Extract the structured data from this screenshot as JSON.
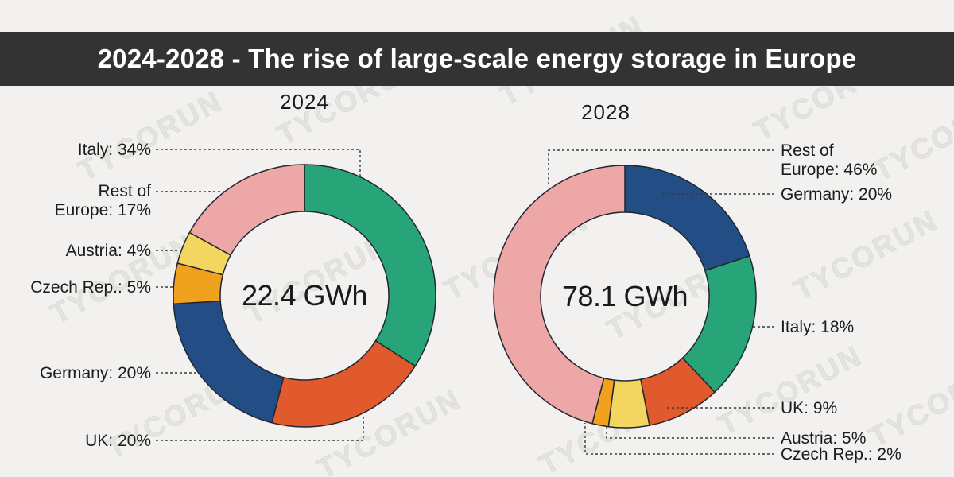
{
  "page": {
    "background_color": "#f2f1ef",
    "watermark": "TYCORUN"
  },
  "header": {
    "title": "2024-2028 - The rise of large-scale energy storage in Europe",
    "bar_color": "#333333",
    "text_color": "#ffffff"
  },
  "chart_data": [
    {
      "type": "pie",
      "subtype": "donut",
      "title": "2024",
      "center_label": "22.4 GWh",
      "total_value": 22.4,
      "unit": "GWh",
      "start_angle_deg": 0,
      "direction": "clockwise",
      "categories": [
        "Italy",
        "UK",
        "Germany",
        "Czech Rep.",
        "Austria",
        "Rest of Europe"
      ],
      "values": [
        34,
        20,
        20,
        5,
        4,
        17
      ],
      "colors": [
        "#28a578",
        "#e05a2e",
        "#234e85",
        "#f0a11d",
        "#f3d65f",
        "#eea7a7"
      ],
      "labels": [
        "Italy: 34%",
        "UK: 20%",
        "Germany: 20%",
        "Czech Rep.: 5%",
        "Austria: 4%",
        "Rest of\nEurope: 17%"
      ]
    },
    {
      "type": "pie",
      "subtype": "donut",
      "title": "2028",
      "center_label": "78.1 GWh",
      "total_value": 78.1,
      "unit": "GWh",
      "start_angle_deg": 0,
      "direction": "clockwise",
      "categories": [
        "Germany",
        "Italy",
        "UK",
        "Austria",
        "Czech Rep.",
        "Rest of Europe"
      ],
      "values": [
        20,
        18,
        9,
        5,
        2,
        46
      ],
      "colors": [
        "#234e85",
        "#28a578",
        "#e05a2e",
        "#f3d65f",
        "#f0a11d",
        "#eea7a7"
      ],
      "labels": [
        "Germany: 20%",
        "Italy: 18%",
        "UK: 9%",
        "Austria: 5%",
        "Czech Rep.: 2%",
        "Rest of\nEurope: 46%"
      ]
    }
  ],
  "style": {
    "slice_stroke": "#222630",
    "leader_color": "#3a3a3a"
  }
}
